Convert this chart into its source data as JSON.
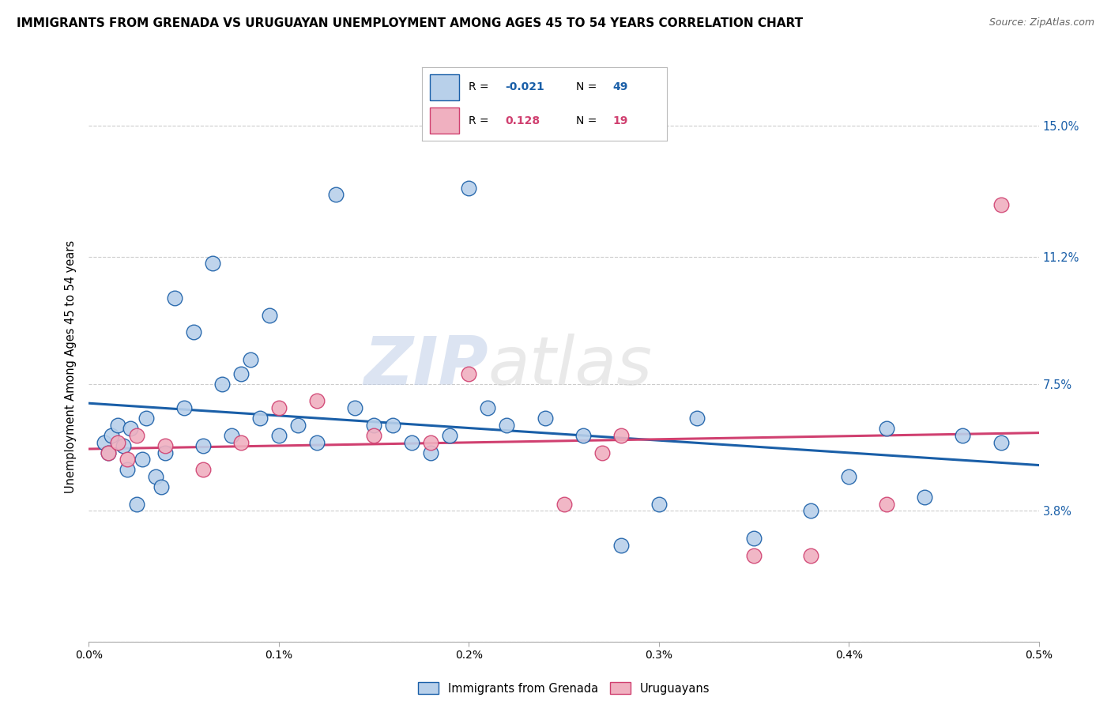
{
  "title": "IMMIGRANTS FROM GRENADA VS URUGUAYAN UNEMPLOYMENT AMONG AGES 45 TO 54 YEARS CORRELATION CHART",
  "source": "Source: ZipAtlas.com",
  "ylabel_label": "Unemployment Among Ages 45 to 54 years",
  "legend_label1": "Immigrants from Grenada",
  "legend_label2": "Uruguayans",
  "r1": "-0.021",
  "n1": "49",
  "r2": "0.128",
  "n2": "19",
  "color_blue": "#b8d0ea",
  "color_pink": "#f0b0c0",
  "line_color_blue": "#1a5fa8",
  "line_color_pink": "#d04070",
  "watermark_zip": "ZIP",
  "watermark_atlas": "atlas",
  "xmin": 0.0,
  "xmax": 0.005,
  "ymin": 0.0,
  "ymax": 0.16,
  "xtick_vals": [
    0.0,
    0.001,
    0.002,
    0.003,
    0.004,
    0.005
  ],
  "xtick_labels": [
    "0.0%",
    "0.1%",
    "0.2%",
    "0.3%",
    "0.4%",
    "0.5%"
  ],
  "ytick_vals": [
    0.0,
    0.038,
    0.075,
    0.112,
    0.15
  ],
  "ytick_labels": [
    "",
    "3.8%",
    "7.5%",
    "11.2%",
    "15.0%"
  ],
  "blue_points_x": [
    8e-05,
    0.0001,
    0.00012,
    0.00015,
    0.00018,
    0.0002,
    0.00022,
    0.00025,
    0.00028,
    0.0003,
    0.00035,
    0.00038,
    0.0004,
    0.00045,
    0.0005,
    0.00055,
    0.0006,
    0.00065,
    0.0007,
    0.00075,
    0.0008,
    0.00085,
    0.0009,
    0.00095,
    0.001,
    0.0011,
    0.0012,
    0.0013,
    0.0014,
    0.0015,
    0.0016,
    0.0017,
    0.0018,
    0.0019,
    0.002,
    0.0021,
    0.0022,
    0.0024,
    0.0026,
    0.0028,
    0.003,
    0.0032,
    0.0035,
    0.0038,
    0.004,
    0.0042,
    0.0044,
    0.0046,
    0.0048
  ],
  "blue_points_y": [
    0.058,
    0.055,
    0.06,
    0.063,
    0.057,
    0.05,
    0.062,
    0.04,
    0.053,
    0.065,
    0.048,
    0.045,
    0.055,
    0.1,
    0.068,
    0.09,
    0.057,
    0.11,
    0.075,
    0.06,
    0.078,
    0.082,
    0.065,
    0.095,
    0.06,
    0.063,
    0.058,
    0.13,
    0.068,
    0.063,
    0.063,
    0.058,
    0.055,
    0.06,
    0.132,
    0.068,
    0.063,
    0.065,
    0.06,
    0.028,
    0.04,
    0.065,
    0.03,
    0.038,
    0.048,
    0.062,
    0.042,
    0.06,
    0.058
  ],
  "pink_points_x": [
    0.0001,
    0.00015,
    0.0002,
    0.00025,
    0.0004,
    0.0006,
    0.0008,
    0.001,
    0.0012,
    0.0015,
    0.0018,
    0.002,
    0.0025,
    0.0027,
    0.0028,
    0.0035,
    0.0038,
    0.0042,
    0.0048
  ],
  "pink_points_y": [
    0.055,
    0.058,
    0.053,
    0.06,
    0.057,
    0.05,
    0.058,
    0.068,
    0.07,
    0.06,
    0.058,
    0.078,
    0.04,
    0.055,
    0.06,
    0.025,
    0.025,
    0.04,
    0.127
  ]
}
